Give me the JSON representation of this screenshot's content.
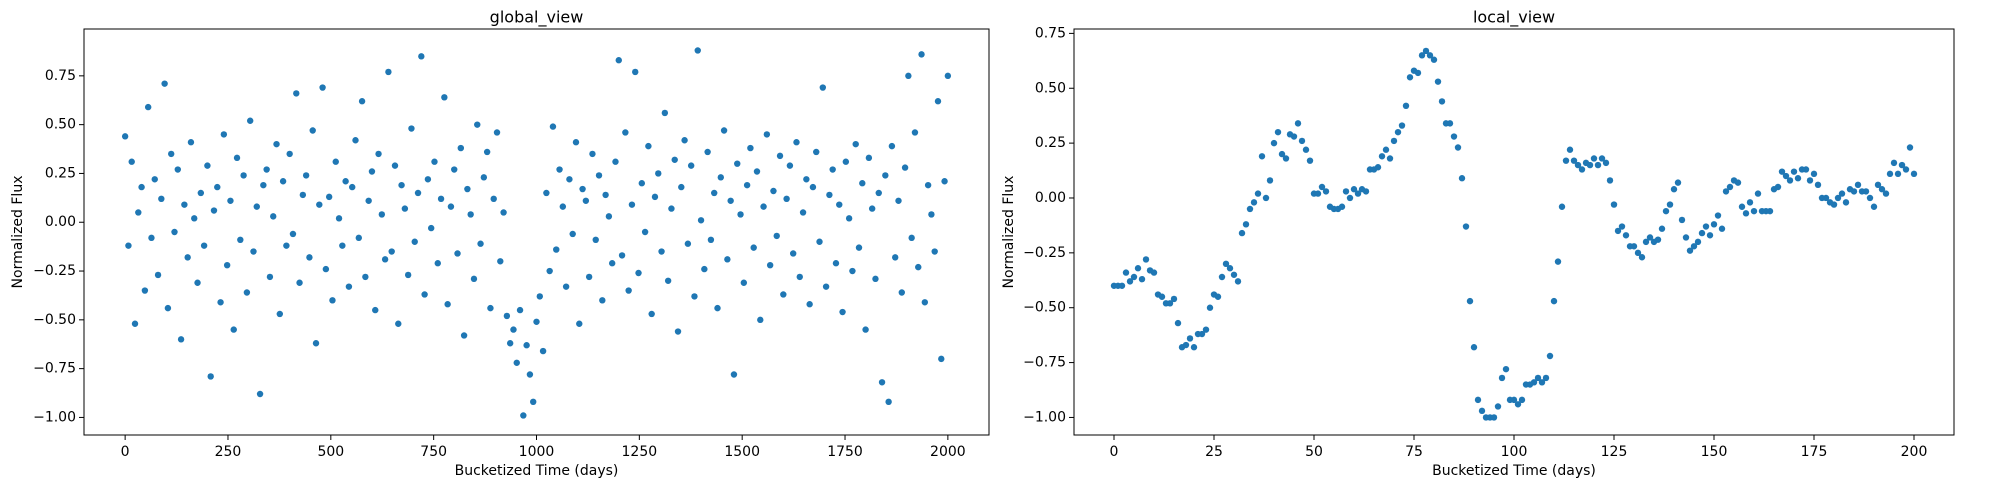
{
  "chart_data": [
    {
      "type": "scatter",
      "title": "global_view",
      "xlabel": "Bucketized Time (days)",
      "ylabel": "Normalized Flux",
      "color": "#1f77b4",
      "x": [
        0,
        8,
        16,
        24,
        32,
        40,
        48,
        56,
        64,
        72,
        80,
        88,
        96,
        104,
        112,
        120,
        128,
        136,
        144,
        152,
        160,
        168,
        176,
        184,
        192,
        200,
        208,
        216,
        224,
        232,
        240,
        248,
        256,
        264,
        272,
        280,
        288,
        296,
        304,
        312,
        320,
        328,
        336,
        344,
        352,
        360,
        368,
        376,
        384,
        392,
        400,
        408,
        416,
        424,
        432,
        440,
        448,
        456,
        464,
        472,
        480,
        488,
        496,
        504,
        512,
        520,
        528,
        536,
        544,
        552,
        560,
        568,
        576,
        584,
        592,
        600,
        608,
        616,
        624,
        632,
        640,
        648,
        656,
        664,
        672,
        680,
        688,
        696,
        704,
        712,
        720,
        728,
        736,
        744,
        752,
        760,
        768,
        776,
        784,
        792,
        800,
        808,
        816,
        824,
        832,
        840,
        848,
        856,
        864,
        872,
        880,
        888,
        896,
        904,
        912,
        920,
        928,
        936,
        944,
        952,
        960,
        968,
        976,
        984,
        992,
        1000,
        1008,
        1016,
        1024,
        1032,
        1040,
        1048,
        1056,
        1064,
        1072,
        1080,
        1088,
        1096,
        1104,
        1112,
        1120,
        1128,
        1136,
        1144,
        1152,
        1160,
        1168,
        1176,
        1184,
        1192,
        1200,
        1208,
        1216,
        1224,
        1232,
        1240,
        1248,
        1256,
        1264,
        1272,
        1280,
        1288,
        1296,
        1304,
        1312,
        1320,
        1328,
        1336,
        1344,
        1352,
        1360,
        1368,
        1376,
        1384,
        1392,
        1400,
        1408,
        1416,
        1424,
        1432,
        1440,
        1448,
        1456,
        1464,
        1472,
        1480,
        1488,
        1496,
        1504,
        1512,
        1520,
        1528,
        1536,
        1544,
        1552,
        1560,
        1568,
        1576,
        1584,
        1592,
        1600,
        1608,
        1616,
        1624,
        1632,
        1640,
        1648,
        1656,
        1664,
        1672,
        1680,
        1688,
        1696,
        1704,
        1712,
        1720,
        1728,
        1736,
        1744,
        1752,
        1760,
        1768,
        1776,
        1784,
        1792,
        1800,
        1808,
        1816,
        1824,
        1832,
        1840,
        1848,
        1856,
        1864,
        1872,
        1880,
        1888,
        1896,
        1904,
        1912,
        1920,
        1928,
        1936,
        1944,
        1952,
        1960,
        1968,
        1976,
        1984,
        1992,
        2000
      ],
      "values": [
        0.44,
        -0.12,
        0.31,
        -0.52,
        0.05,
        0.18,
        -0.35,
        0.59,
        -0.08,
        0.22,
        -0.27,
        0.12,
        0.71,
        -0.44,
        0.35,
        -0.05,
        0.27,
        -0.6,
        0.09,
        -0.18,
        0.41,
        0.02,
        -0.31,
        0.15,
        -0.12,
        0.29,
        -0.79,
        0.06,
        0.18,
        -0.41,
        0.45,
        -0.22,
        0.11,
        -0.55,
        0.33,
        -0.09,
        0.24,
        -0.36,
        0.52,
        -0.15,
        0.08,
        -0.88,
        0.19,
        0.27,
        -0.28,
        0.03,
        0.4,
        -0.47,
        0.21,
        -0.12,
        0.35,
        -0.06,
        0.66,
        -0.31,
        0.14,
        0.24,
        -0.18,
        0.47,
        -0.62,
        0.09,
        0.69,
        -0.24,
        0.13,
        -0.4,
        0.31,
        0.02,
        -0.12,
        0.21,
        -0.33,
        0.18,
        0.42,
        -0.08,
        0.62,
        -0.28,
        0.11,
        0.26,
        -0.45,
        0.35,
        0.04,
        -0.19,
        0.77,
        -0.15,
        0.29,
        -0.52,
        0.19,
        0.07,
        -0.27,
        0.48,
        -0.1,
        0.15,
        0.85,
        -0.37,
        0.22,
        -0.03,
        0.31,
        -0.21,
        0.12,
        0.64,
        -0.42,
        0.08,
        0.27,
        -0.16,
        0.38,
        -0.58,
        0.17,
        0.04,
        -0.29,
        0.5,
        -0.11,
        0.23,
        0.36,
        -0.44,
        0.12,
        0.46,
        -0.2,
        0.05,
        -0.48,
        -0.62,
        -0.55,
        -0.72,
        -0.45,
        -0.99,
        -0.63,
        -0.78,
        -0.92,
        -0.51,
        -0.38,
        -0.66,
        0.15,
        -0.25,
        0.49,
        -0.14,
        0.27,
        0.08,
        -0.33,
        0.22,
        -0.06,
        0.41,
        -0.52,
        0.17,
        0.11,
        -0.28,
        0.35,
        -0.09,
        0.24,
        -0.4,
        0.14,
        0.03,
        -0.21,
        0.31,
        0.83,
        -0.17,
        0.46,
        -0.35,
        0.09,
        0.77,
        -0.26,
        0.2,
        -0.05,
        0.39,
        -0.47,
        0.13,
        0.25,
        -0.15,
        0.56,
        -0.3,
        0.07,
        0.32,
        -0.56,
        0.18,
        0.42,
        -0.11,
        0.29,
        -0.38,
        0.88,
        0.01,
        -0.24,
        0.36,
        -0.09,
        0.15,
        -0.44,
        0.23,
        0.47,
        -0.19,
        0.11,
        -0.78,
        0.3,
        0.04,
        -0.31,
        0.19,
        0.38,
        -0.13,
        0.26,
        -0.5,
        0.08,
        0.45,
        -0.22,
        0.16,
        -0.07,
        0.34,
        -0.37,
        0.12,
        0.29,
        -0.16,
        0.41,
        -0.28,
        0.05,
        0.22,
        -0.42,
        0.18,
        0.36,
        -0.1,
        0.69,
        -0.33,
        0.14,
        0.27,
        -0.21,
        0.09,
        -0.46,
        0.31,
        0.02,
        -0.25,
        0.4,
        -0.13,
        0.2,
        -0.55,
        0.33,
        0.07,
        -0.29,
        0.15,
        -0.82,
        0.24,
        -0.92,
        0.39,
        -0.18,
        0.11,
        -0.36,
        0.28,
        0.75,
        -0.08,
        0.46,
        -0.23,
        0.86,
        -0.41,
        0.19,
        0.04,
        -0.15,
        0.62,
        -0.7,
        0.21,
        0.75
      ],
      "xlim": [
        -100,
        2100
      ],
      "xticks": [
        0,
        250,
        500,
        750,
        1000,
        1250,
        1500,
        1750,
        2000
      ],
      "ylim": [
        -1.09,
        0.99
      ],
      "yticks": [
        {
          "value": -1,
          "label": "−1.00"
        },
        {
          "value": -0.75,
          "label": "−0.75"
        },
        {
          "value": -0.5,
          "label": "−0.50"
        },
        {
          "value": -0.25,
          "label": "−0.25"
        },
        {
          "value": 0,
          "label": "0.00"
        },
        0.25,
        {
          "value": 0.5,
          "label": "0.50"
        },
        0.75
      ]
    },
    {
      "type": "scatter",
      "title": "local_view",
      "xlabel": "Bucketized Time (days)",
      "ylabel": "Normalized Flux",
      "color": "#1f77b4",
      "x": [
        0,
        1,
        2,
        3,
        4,
        5,
        6,
        7,
        8,
        9,
        10,
        11,
        12,
        13,
        14,
        15,
        16,
        17,
        18,
        19,
        20,
        21,
        22,
        23,
        24,
        25,
        26,
        27,
        28,
        29,
        30,
        31,
        32,
        33,
        34,
        35,
        36,
        37,
        38,
        39,
        40,
        41,
        42,
        43,
        44,
        45,
        46,
        47,
        48,
        49,
        50,
        51,
        52,
        53,
        54,
        55,
        56,
        57,
        58,
        59,
        60,
        61,
        62,
        63,
        64,
        65,
        66,
        67,
        68,
        69,
        70,
        71,
        72,
        73,
        74,
        75,
        76,
        77,
        78,
        79,
        80,
        81,
        82,
        83,
        84,
        85,
        86,
        87,
        88,
        89,
        90,
        91,
        92,
        93,
        94,
        95,
        96,
        97,
        98,
        99,
        100,
        101,
        102,
        103,
        104,
        105,
        106,
        107,
        108,
        109,
        110,
        111,
        112,
        113,
        114,
        115,
        116,
        117,
        118,
        119,
        120,
        121,
        122,
        123,
        124,
        125,
        126,
        127,
        128,
        129,
        130,
        131,
        132,
        133,
        134,
        135,
        136,
        137,
        138,
        139,
        140,
        141,
        142,
        143,
        144,
        145,
        146,
        147,
        148,
        149,
        150,
        151,
        152,
        153,
        154,
        155,
        156,
        157,
        158,
        159,
        160,
        161,
        162,
        163,
        164,
        165,
        166,
        167,
        168,
        169,
        170,
        171,
        172,
        173,
        174,
        175,
        176,
        177,
        178,
        179,
        180,
        181,
        182,
        183,
        184,
        185,
        186,
        187,
        188,
        189,
        190,
        191,
        192,
        193,
        194,
        195,
        196,
        197,
        198,
        199,
        200
      ],
      "values": [
        -0.4,
        -0.4,
        -0.4,
        -0.34,
        -0.38,
        -0.36,
        -0.32,
        -0.37,
        -0.28,
        -0.33,
        -0.34,
        -0.44,
        -0.45,
        -0.48,
        -0.48,
        -0.46,
        -0.57,
        -0.68,
        -0.67,
        -0.64,
        -0.68,
        -0.62,
        -0.62,
        -0.6,
        -0.5,
        -0.44,
        -0.45,
        -0.36,
        -0.3,
        -0.32,
        -0.35,
        -0.38,
        -0.16,
        -0.12,
        -0.05,
        -0.02,
        0.02,
        0.19,
        0.0,
        0.08,
        0.25,
        0.3,
        0.2,
        0.18,
        0.29,
        0.28,
        0.34,
        0.26,
        0.22,
        0.17,
        0.02,
        0.02,
        0.05,
        0.03,
        -0.04,
        -0.05,
        -0.05,
        -0.04,
        0.03,
        0.0,
        0.04,
        0.02,
        0.04,
        0.03,
        0.13,
        0.13,
        0.14,
        0.19,
        0.22,
        0.18,
        0.26,
        0.3,
        0.33,
        0.42,
        0.55,
        0.58,
        0.57,
        0.65,
        0.67,
        0.65,
        0.63,
        0.53,
        0.44,
        0.34,
        0.34,
        0.28,
        0.23,
        0.09,
        -0.13,
        -0.47,
        -0.68,
        -0.92,
        -0.97,
        -1.0,
        -1.0,
        -1.0,
        -0.95,
        -0.82,
        -0.78,
        -0.92,
        -0.92,
        -0.94,
        -0.92,
        -0.85,
        -0.85,
        -0.84,
        -0.82,
        -0.84,
        -0.82,
        -0.72,
        -0.47,
        -0.29,
        -0.04,
        0.17,
        0.22,
        0.17,
        0.15,
        0.13,
        0.16,
        0.15,
        0.18,
        0.15,
        0.18,
        0.16,
        0.08,
        -0.03,
        -0.15,
        -0.13,
        -0.17,
        -0.22,
        -0.22,
        -0.25,
        -0.27,
        -0.2,
        -0.18,
        -0.2,
        -0.19,
        -0.14,
        -0.06,
        -0.03,
        0.04,
        0.07,
        -0.1,
        -0.18,
        -0.24,
        -0.22,
        -0.2,
        -0.16,
        -0.13,
        -0.17,
        -0.12,
        -0.08,
        -0.14,
        0.03,
        0.05,
        0.08,
        0.07,
        -0.04,
        -0.07,
        -0.02,
        -0.06,
        0.02,
        -0.06,
        -0.06,
        -0.06,
        0.04,
        0.05,
        0.12,
        0.1,
        0.08,
        0.12,
        0.09,
        0.13,
        0.13,
        0.08,
        0.11,
        0.06,
        0.0,
        0.0,
        -0.02,
        -0.03,
        0.0,
        0.02,
        -0.02,
        0.04,
        0.03,
        0.06,
        0.03,
        0.03,
        0.0,
        -0.04,
        0.06,
        0.04,
        0.02,
        0.11,
        0.16,
        0.11,
        0.15,
        0.13,
        0.23,
        0.11
      ],
      "xlim": [
        -10,
        210
      ],
      "xticks": [
        0,
        25,
        50,
        75,
        100,
        125,
        150,
        175,
        200
      ],
      "ylim": [
        -1.08,
        0.77
      ],
      "yticks": [
        {
          "value": -1,
          "label": "−1.00"
        },
        {
          "value": -0.75,
          "label": "−0.75"
        },
        {
          "value": -0.5,
          "label": "−0.50"
        },
        {
          "value": -0.25,
          "label": "−0.25"
        },
        {
          "value": 0,
          "label": "0.00"
        },
        0.25,
        {
          "value": 0.5,
          "label": "0.50"
        },
        0.75
      ]
    }
  ]
}
